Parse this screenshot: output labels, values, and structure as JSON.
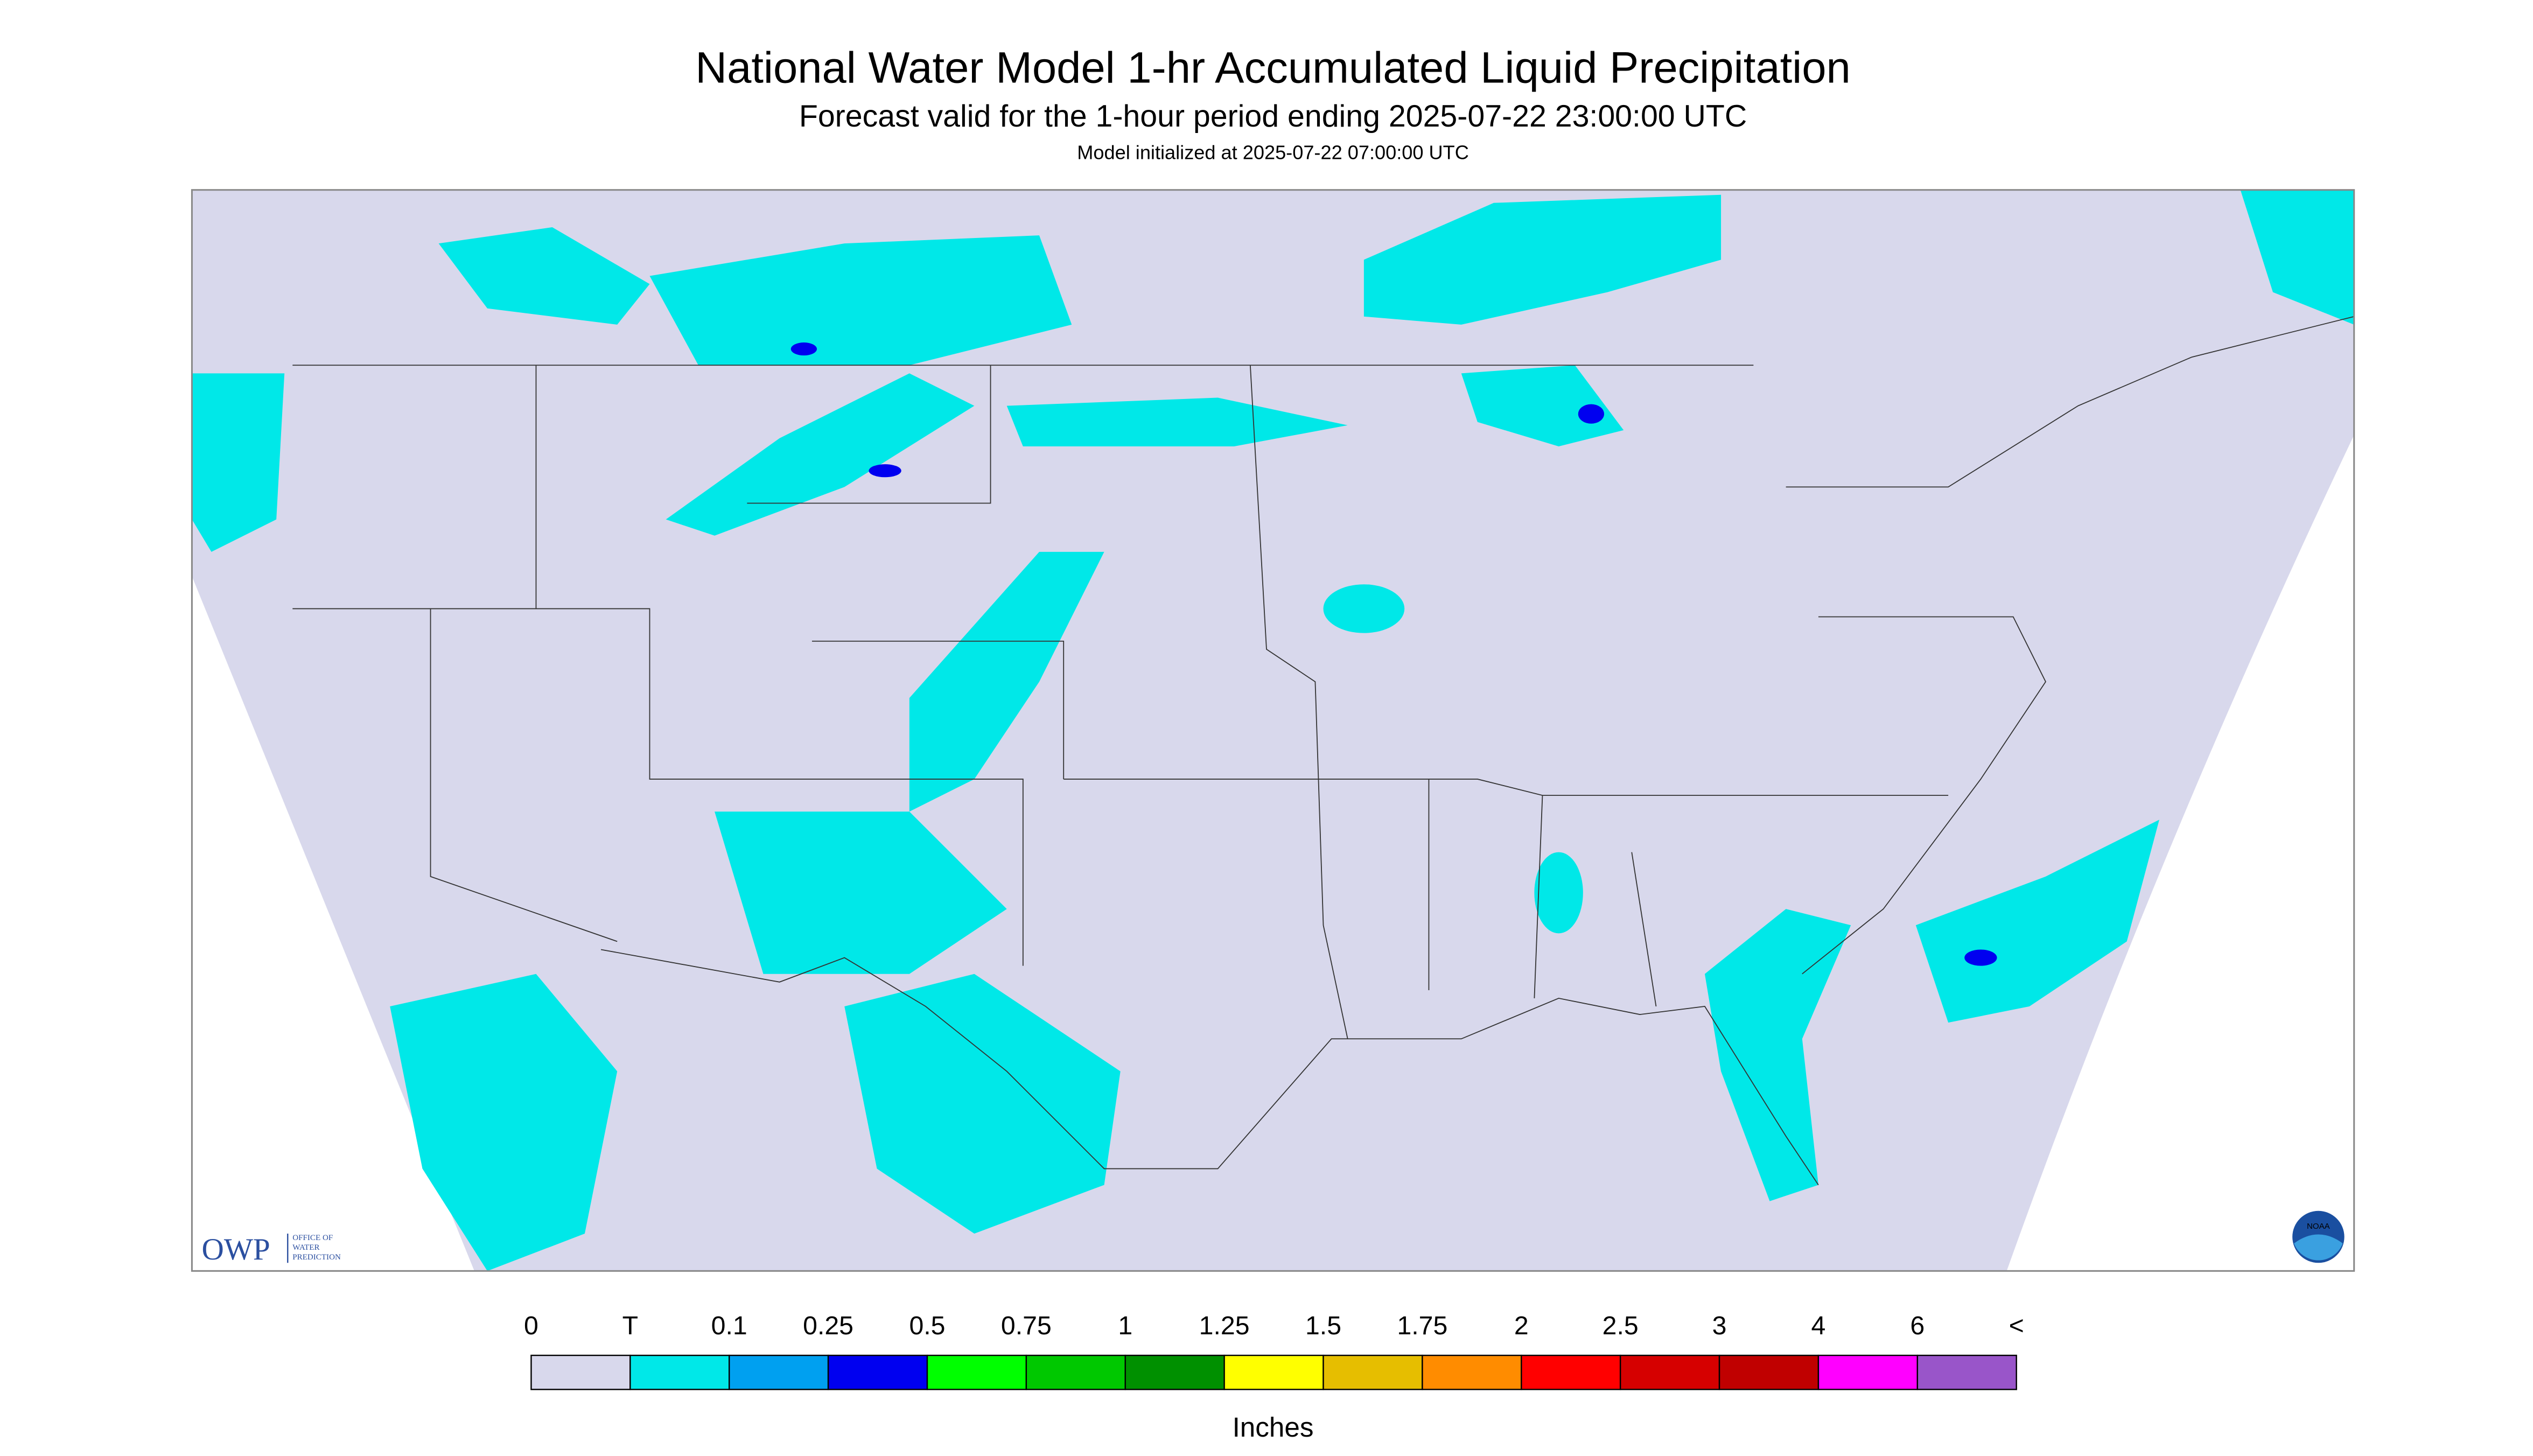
{
  "header": {
    "title": "National Water Model 1-hr Accumulated Liquid Precipitation",
    "subtitle": "Forecast valid for the 1-hour period ending 2025-07-22 23:00:00 UTC",
    "note": "Model initialized at 2025-07-22 07:00:00 UTC"
  },
  "logos": {
    "owp": "OWP",
    "owp_text": [
      "OFFICE OF",
      "WATER",
      "PREDICTION"
    ],
    "noaa": "NOAA"
  },
  "legend": {
    "labels": [
      "0",
      "T",
      "0.1",
      "0.25",
      "0.5",
      "0.75",
      "1",
      "1.25",
      "1.5",
      "1.75",
      "2",
      "2.5",
      "3",
      "4",
      "6",
      "<"
    ],
    "colors": [
      "#d8d8ec",
      "#00e8e8",
      "#00a0f0",
      "#0000f0",
      "#00ff00",
      "#00c800",
      "#009000",
      "#ffff00",
      "#e6be00",
      "#ff8c00",
      "#ff0000",
      "#d60000",
      "#c00000",
      "#ff00ff",
      "#9955c9"
    ],
    "unit": "Inches"
  }
}
